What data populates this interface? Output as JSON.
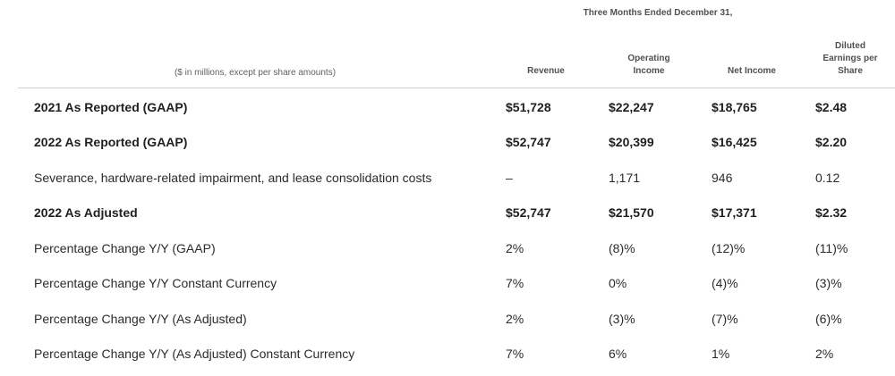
{
  "header": {
    "period": "Three Months Ended December 31,",
    "units": "($ in millions, except per share amounts)",
    "columns": {
      "revenue": "Revenue",
      "operating_income_1": "Operating",
      "operating_income_2": "Income",
      "net_income": "Net Income",
      "eps_1": "Diluted",
      "eps_2": "Earnings per",
      "eps_3": "Share"
    }
  },
  "rows": [
    {
      "label": "2021 As Reported (GAAP)",
      "revenue": "$51,728",
      "operating_income": "$22,247",
      "net_income": "$18,765",
      "eps": "$2.48"
    },
    {
      "label": "2022 As Reported (GAAP)",
      "revenue": "$52,747",
      "operating_income": "$20,399",
      "net_income": "$16,425",
      "eps": "$2.20"
    },
    {
      "label": "Severance, hardware-related impairment, and lease consolidation costs",
      "revenue": "–",
      "operating_income": "1,171",
      "net_income": "946",
      "eps": "0.12"
    },
    {
      "label": "2022 As Adjusted",
      "revenue": "$52,747",
      "operating_income": "$21,570",
      "net_income": "$17,371",
      "eps": "$2.32"
    },
    {
      "label": "Percentage Change Y/Y (GAAP)",
      "revenue": "2%",
      "operating_income": "(8)%",
      "net_income": "(12)%",
      "eps": "(11)%"
    },
    {
      "label": "Percentage Change Y/Y Constant Currency",
      "revenue": "7%",
      "operating_income": "0%",
      "net_income": "(4)%",
      "eps": "(3)%"
    },
    {
      "label": "Percentage Change Y/Y (As Adjusted)",
      "revenue": "2%",
      "operating_income": "(3)%",
      "net_income": "(7)%",
      "eps": "(6)%"
    },
    {
      "label": "Percentage Change Y/Y (As Adjusted) Constant Currency",
      "revenue": "7%",
      "operating_income": "6%",
      "net_income": "1%",
      "eps": "2%"
    }
  ]
}
